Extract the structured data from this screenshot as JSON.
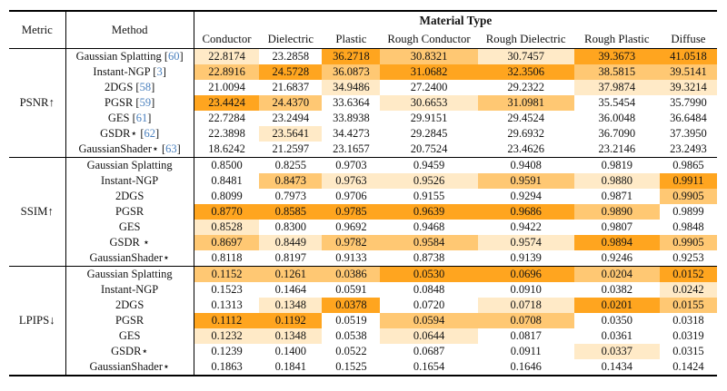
{
  "table": {
    "header": {
      "metric": "Metric",
      "method": "Method",
      "material_type": "Material Type"
    },
    "material_columns": [
      "Conductor",
      "Dielectric",
      "Plastic",
      "Rough Conductor",
      "Rough Dielectric",
      "Rough Plastic",
      "Diffuse"
    ],
    "citation_color": "#4A80BE",
    "highlight_colors": {
      "best": "#FFA51F",
      "second": "#FFC873",
      "third": "#FFEAC7"
    },
    "sections": [
      {
        "metric": "PSNR↑",
        "rows": [
          {
            "method": "Gaussian Splatting",
            "citation": "60",
            "values": [
              "22.8174",
              "23.2858",
              "36.2718",
              "30.8321",
              "30.7457",
              "39.3673",
              "41.0518"
            ],
            "highlights": [
              "third",
              "",
              "best",
              "second",
              "third",
              "best",
              "best"
            ]
          },
          {
            "method": "Instant-NGP",
            "citation": "3",
            "values": [
              "22.8916",
              "24.5728",
              "36.0873",
              "31.0682",
              "32.3506",
              "38.5815",
              "39.5141"
            ],
            "highlights": [
              "second",
              "best",
              "second",
              "best",
              "best",
              "second",
              "second"
            ]
          },
          {
            "method": "2DGS",
            "citation": "58",
            "values": [
              "21.0094",
              "21.6837",
              "34.9486",
              "27.2400",
              "29.2322",
              "37.9874",
              "39.3214"
            ],
            "highlights": [
              "",
              "",
              "third",
              "",
              "",
              "third",
              "third"
            ]
          },
          {
            "method": "PGSR",
            "citation": "59",
            "values": [
              "23.4424",
              "24.4370",
              "33.6364",
              "30.6653",
              "31.0981",
              "35.5454",
              "35.7990"
            ],
            "highlights": [
              "best",
              "second",
              "",
              "third",
              "second",
              "",
              ""
            ]
          },
          {
            "method": "GES",
            "citation": "61",
            "values": [
              "22.7284",
              "23.2494",
              "33.8938",
              "29.9151",
              "29.4524",
              "36.0048",
              "36.6484"
            ],
            "highlights": [
              "",
              "",
              "",
              "",
              "",
              "",
              ""
            ]
          },
          {
            "method": "GSDR⋆",
            "citation": "62",
            "values": [
              "22.3898",
              "23.5641",
              "34.4273",
              "29.2845",
              "29.6932",
              "36.7090",
              "37.3950"
            ],
            "highlights": [
              "",
              "third",
              "",
              "",
              "",
              "",
              ""
            ]
          },
          {
            "method": "GaussianShader⋆",
            "citation": "63",
            "values": [
              "18.6242",
              "21.2597",
              "23.1657",
              "20.7524",
              "23.4626",
              "23.2146",
              "23.2493"
            ],
            "highlights": [
              "",
              "",
              "",
              "",
              "",
              "",
              ""
            ]
          }
        ]
      },
      {
        "metric": "SSIM↑",
        "rows": [
          {
            "method": "Gaussian Splatting",
            "values": [
              "0.8500",
              "0.8255",
              "0.9703",
              "0.9459",
              "0.9408",
              "0.9819",
              "0.9865"
            ],
            "highlights": [
              "",
              "",
              "",
              "",
              "",
              "",
              ""
            ]
          },
          {
            "method": "Instant-NGP",
            "values": [
              "0.8481",
              "0.8473",
              "0.9763",
              "0.9526",
              "0.9591",
              "0.9880",
              "0.9911"
            ],
            "highlights": [
              "",
              "second",
              "third",
              "third",
              "second",
              "third",
              "best"
            ]
          },
          {
            "method": "2DGS",
            "values": [
              "0.8099",
              "0.7973",
              "0.9706",
              "0.9155",
              "0.9294",
              "0.9871",
              "0.9905"
            ],
            "highlights": [
              "",
              "",
              "",
              "",
              "",
              "",
              "second"
            ]
          },
          {
            "method": "PGSR",
            "values": [
              "0.8770",
              "0.8585",
              "0.9785",
              "0.9639",
              "0.9686",
              "0.9890",
              "0.9899"
            ],
            "highlights": [
              "best",
              "best",
              "best",
              "best",
              "best",
              "second",
              ""
            ]
          },
          {
            "method": "GES",
            "values": [
              "0.8528",
              "0.8300",
              "0.9692",
              "0.9468",
              "0.9422",
              "0.9807",
              "0.9848"
            ],
            "highlights": [
              "third",
              "",
              "",
              "",
              "",
              "",
              ""
            ]
          },
          {
            "method": "GSDR ⋆",
            "values": [
              "0.8697",
              "0.8449",
              "0.9782",
              "0.9584",
              "0.9574",
              "0.9894",
              "0.9905"
            ],
            "highlights": [
              "second",
              "third",
              "second",
              "second",
              "third",
              "best",
              "second"
            ]
          },
          {
            "method": "GaussianShader⋆",
            "values": [
              "0.8118",
              "0.8197",
              "0.9133",
              "0.8738",
              "0.9139",
              "0.9246",
              "0.9253"
            ],
            "highlights": [
              "",
              "",
              "",
              "",
              "",
              "",
              ""
            ]
          }
        ]
      },
      {
        "metric": "LPIPS↓",
        "rows": [
          {
            "method": "Gaussian Splatting",
            "values": [
              "0.1152",
              "0.1261",
              "0.0386",
              "0.0530",
              "0.0696",
              "0.0204",
              "0.0152"
            ],
            "highlights": [
              "second",
              "second",
              "second",
              "best",
              "best",
              "second",
              "best"
            ]
          },
          {
            "method": "Instant-NGP",
            "values": [
              "0.1523",
              "0.1464",
              "0.0591",
              "0.0848",
              "0.0910",
              "0.0382",
              "0.0242"
            ],
            "highlights": [
              "",
              "",
              "",
              "",
              "",
              "",
              "third"
            ]
          },
          {
            "method": "2DGS",
            "values": [
              "0.1313",
              "0.1348",
              "0.0378",
              "0.0720",
              "0.0718",
              "0.0201",
              "0.0155"
            ],
            "highlights": [
              "",
              "third",
              "best",
              "",
              "third",
              "best",
              "second"
            ]
          },
          {
            "method": "PGSR",
            "values": [
              "0.1112",
              "0.1192",
              "0.0519",
              "0.0594",
              "0.0708",
              "0.0350",
              "0.0318"
            ],
            "highlights": [
              "best",
              "best",
              "",
              "second",
              "second",
              "",
              ""
            ]
          },
          {
            "method": "GES",
            "values": [
              "0.1232",
              "0.1348",
              "0.0538",
              "0.0644",
              "0.0817",
              "0.0361",
              "0.0319"
            ],
            "highlights": [
              "third",
              "third",
              "",
              "third",
              "",
              "",
              ""
            ]
          },
          {
            "method": "GSDR⋆",
            "values": [
              "0.1239",
              "0.1400",
              "0.0522",
              "0.0687",
              "0.0911",
              "0.0337",
              "0.0315"
            ],
            "highlights": [
              "",
              "",
              "",
              "",
              "",
              "third",
              ""
            ]
          },
          {
            "method": "GaussianShader⋆",
            "values": [
              "0.1863",
              "0.1841",
              "0.1525",
              "0.1654",
              "0.1646",
              "0.1434",
              "0.1424"
            ],
            "highlights": [
              "",
              "",
              "",
              "",
              "",
              "",
              ""
            ]
          }
        ]
      }
    ]
  }
}
